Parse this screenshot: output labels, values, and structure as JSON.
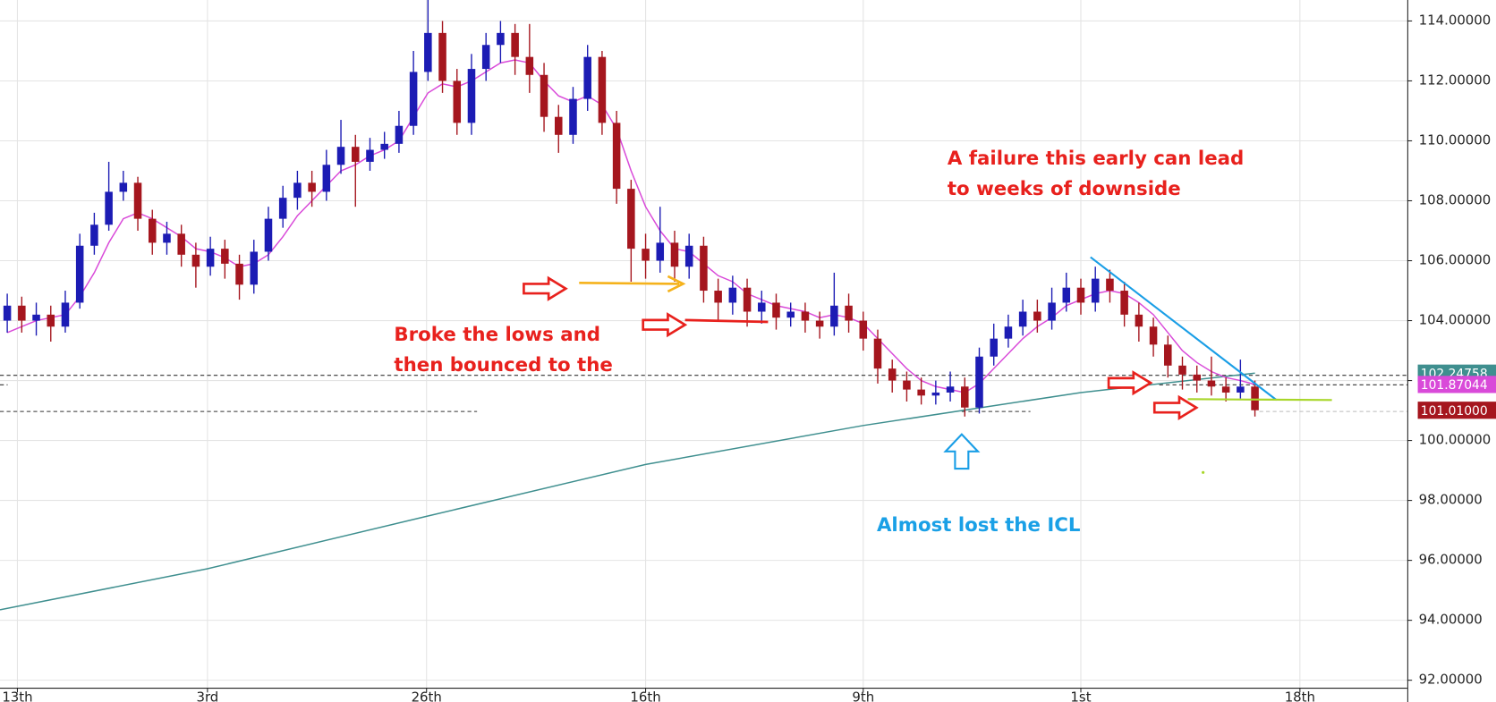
{
  "chart_data": {
    "type": "candlestick",
    "xlim": [
      0,
      97
    ],
    "ylim": [
      91.75,
      114.7
    ],
    "grid": true,
    "xticks": [
      {
        "value": 1.2,
        "label": "13th"
      },
      {
        "value": 14.3,
        "label": "3rd"
      },
      {
        "value": 29.4,
        "label": "26th"
      },
      {
        "value": 44.5,
        "label": "16th"
      },
      {
        "value": 59.5,
        "label": "9th"
      },
      {
        "value": 74.5,
        "label": "1st"
      },
      {
        "value": 89.6,
        "label": "18th"
      }
    ],
    "yticks": [
      {
        "value": 92,
        "label": "92.00000"
      },
      {
        "value": 94,
        "label": "94.00000"
      },
      {
        "value": 96,
        "label": "96.00000"
      },
      {
        "value": 98,
        "label": "98.00000"
      },
      {
        "value": 100,
        "label": "100.00000"
      },
      {
        "value": 102,
        "label": "102.00000"
      },
      {
        "value": 104,
        "label": "104.00000"
      },
      {
        "value": 106,
        "label": "106.00000"
      },
      {
        "value": 108,
        "label": "108.00000"
      },
      {
        "value": 110,
        "label": "110.00000"
      },
      {
        "value": 112,
        "label": "112.00000"
      },
      {
        "value": 114,
        "label": "114.00000"
      }
    ],
    "candles": {
      "up_color": "#1c1cb4",
      "down_color": "#a5161e",
      "open": [
        104.0,
        104.5,
        104.0,
        104.2,
        103.8,
        104.6,
        106.5,
        107.2,
        108.3,
        108.6,
        107.4,
        106.6,
        106.9,
        106.2,
        105.8,
        106.4,
        105.9,
        105.2,
        106.3,
        107.4,
        108.1,
        108.6,
        108.3,
        109.2,
        109.8,
        109.3,
        109.7,
        109.9,
        110.5,
        112.3,
        113.6,
        112.0,
        110.6,
        112.4,
        113.2,
        113.6,
        112.8,
        112.2,
        110.8,
        110.2,
        111.4,
        112.8,
        110.6,
        108.4,
        106.4,
        106.0,
        106.6,
        105.8,
        106.5,
        105.0,
        104.6,
        105.1,
        104.3,
        104.6,
        104.1,
        104.3,
        104.0,
        103.8,
        104.5,
        104.0,
        103.4,
        102.4,
        102.0,
        101.7,
        101.5,
        101.6,
        101.8,
        101.1,
        102.8,
        103.4,
        103.8,
        104.3,
        104.0,
        104.6,
        105.1,
        104.6,
        105.4,
        105.0,
        104.2,
        103.8,
        103.2,
        102.5,
        102.2,
        102.0,
        101.8,
        101.6,
        101.8
      ],
      "high": [
        104.9,
        104.8,
        104.6,
        104.5,
        105.0,
        106.9,
        107.6,
        109.3,
        109.0,
        108.8,
        107.7,
        107.3,
        107.2,
        106.6,
        106.8,
        106.7,
        106.2,
        106.7,
        107.8,
        108.5,
        109.0,
        109.0,
        109.7,
        110.7,
        110.2,
        110.1,
        110.3,
        111.0,
        113.0,
        114.7,
        114.0,
        112.4,
        112.9,
        113.6,
        114.0,
        113.9,
        113.9,
        112.6,
        111.2,
        111.8,
        113.2,
        113.0,
        111.0,
        108.7,
        106.9,
        107.8,
        107.0,
        106.9,
        106.8,
        105.4,
        105.5,
        105.4,
        105.0,
        104.9,
        104.6,
        104.6,
        104.3,
        105.6,
        104.9,
        104.3,
        103.7,
        102.7,
        102.3,
        102.1,
        102.0,
        102.3,
        102.1,
        103.1,
        103.9,
        104.2,
        104.7,
        104.7,
        105.1,
        105.6,
        105.4,
        105.8,
        105.7,
        105.3,
        104.6,
        104.1,
        103.5,
        102.8,
        102.5,
        102.8,
        102.1,
        102.7,
        102.0
      ],
      "low": [
        103.6,
        103.6,
        103.5,
        103.3,
        103.6,
        104.4,
        106.2,
        107.0,
        108.0,
        107.0,
        106.2,
        106.2,
        105.8,
        105.1,
        105.5,
        105.4,
        104.7,
        104.9,
        106.0,
        107.1,
        107.7,
        107.8,
        108.0,
        108.9,
        107.8,
        109.0,
        109.4,
        109.6,
        110.2,
        112.0,
        111.6,
        110.2,
        110.2,
        112.0,
        112.6,
        112.2,
        111.6,
        110.3,
        109.6,
        109.9,
        111.0,
        110.2,
        107.9,
        105.3,
        105.4,
        105.6,
        105.3,
        105.4,
        104.6,
        104.0,
        104.2,
        103.8,
        103.9,
        103.7,
        103.8,
        103.6,
        103.4,
        103.5,
        103.6,
        103.0,
        101.9,
        101.6,
        101.3,
        101.2,
        101.2,
        101.3,
        100.8,
        100.9,
        102.5,
        103.1,
        103.5,
        103.6,
        103.7,
        104.3,
        104.2,
        104.3,
        104.6,
        103.8,
        103.3,
        102.8,
        102.1,
        101.7,
        101.6,
        101.5,
        101.3,
        101.4,
        100.8
      ],
      "close": [
        104.5,
        104.0,
        104.2,
        103.8,
        104.6,
        106.5,
        107.2,
        108.3,
        108.6,
        107.4,
        106.6,
        106.9,
        106.2,
        105.8,
        106.4,
        105.9,
        105.2,
        106.3,
        107.4,
        108.1,
        108.6,
        108.3,
        109.2,
        109.8,
        109.3,
        109.7,
        109.9,
        110.5,
        112.3,
        113.6,
        112.0,
        110.6,
        112.4,
        113.2,
        113.6,
        112.8,
        112.2,
        110.8,
        110.2,
        111.4,
        112.8,
        110.6,
        108.4,
        106.4,
        106.0,
        106.6,
        105.8,
        106.5,
        105.0,
        104.6,
        105.1,
        104.3,
        104.6,
        104.1,
        104.3,
        104.0,
        103.8,
        104.5,
        104.0,
        103.4,
        102.4,
        102.0,
        101.7,
        101.5,
        101.6,
        101.8,
        101.1,
        102.8,
        103.4,
        103.8,
        104.3,
        104.0,
        104.6,
        105.1,
        104.6,
        105.4,
        105.0,
        104.2,
        103.8,
        103.2,
        102.5,
        102.2,
        102.0,
        101.8,
        101.6,
        101.8,
        101.01
      ]
    },
    "lines": [
      {
        "color": "#3f8f8f",
        "x": [
          0,
          14.3,
          29.4,
          44.5,
          59.5,
          74.5,
          86.5
        ],
        "values": [
          94.35,
          95.72,
          97.47,
          99.2,
          100.5,
          101.6,
          102.24758
        ]
      },
      {
        "color": "#d94ad9",
        "values": [
          103.6,
          103.8,
          104.0,
          104.1,
          104.2,
          104.8,
          105.6,
          106.6,
          107.4,
          107.6,
          107.4,
          107.1,
          106.8,
          106.4,
          106.3,
          106.1,
          105.8,
          105.9,
          106.2,
          106.8,
          107.5,
          108.0,
          108.5,
          109.0,
          109.2,
          109.5,
          109.7,
          110.0,
          110.8,
          111.6,
          111.9,
          111.8,
          112.0,
          112.3,
          112.6,
          112.7,
          112.6,
          112.0,
          111.5,
          111.3,
          111.5,
          111.2,
          110.4,
          109.0,
          107.8,
          107.0,
          106.4,
          106.3,
          105.9,
          105.5,
          105.3,
          104.9,
          104.7,
          104.5,
          104.4,
          104.3,
          104.1,
          104.2,
          104.1,
          103.9,
          103.4,
          102.9,
          102.4,
          102.0,
          101.8,
          101.7,
          101.6,
          101.9,
          102.4,
          102.9,
          103.4,
          103.8,
          104.1,
          104.5,
          104.7,
          104.9,
          105.0,
          104.9,
          104.6,
          104.2,
          103.6,
          103.0,
          102.6,
          102.3,
          102.1,
          102.0,
          101.87044
        ]
      }
    ],
    "price_tags": [
      {
        "value": 102.24758,
        "label": "102.24758",
        "color": "#3f8f8f"
      },
      {
        "value": 101.87044,
        "label": "101.87044",
        "color": "#d94ad9"
      },
      {
        "value": 101.01,
        "label": "101.01000",
        "color": "#a5161e"
      }
    ],
    "annotations": [
      {
        "text": "A failure this early can lead",
        "color": "#e8211d"
      },
      {
        "text": "to weeks of downside",
        "color": "#e8211d"
      },
      {
        "text": "Broke the lows and",
        "color": "#e8211d"
      },
      {
        "text": "then bounced to the",
        "color": "#e8211d"
      },
      {
        "text": "Almost lost the ICL",
        "color": "#1aa0e6"
      }
    ]
  }
}
